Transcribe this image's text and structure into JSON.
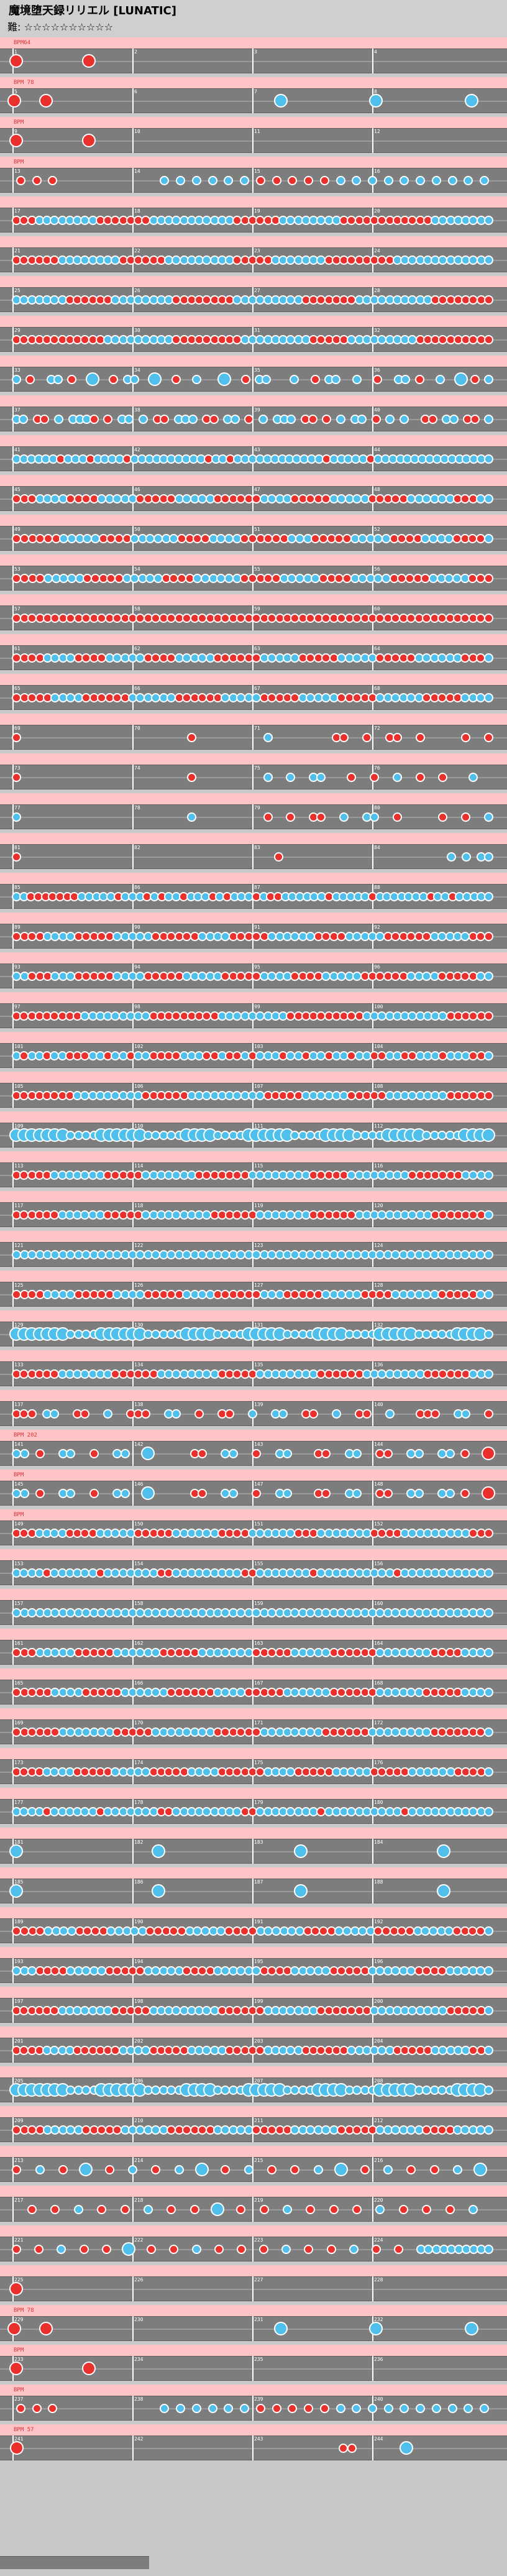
{
  "header": {
    "title": "魔境堕天録リリエル [LUNATIC]",
    "difficulty_label": "難: ☆☆☆☆☆☆☆☆☆☆"
  },
  "chart_data": {
    "type": "table",
    "course": "LUNATIC",
    "stars": 10,
    "measures_per_row": 4,
    "rows": [
      {
        "first": 1,
        "event": "BPM64",
        "notes": "X.........X......................................................."
      },
      {
        "first": 5,
        "event": "BPM 78",
        "notes": "X.........X.........................................................................B.............................B.............................B......"
      },
      {
        "first": 9,
        "event": "BPM",
        "notes": "X.........X......................................................."
      },
      {
        "first": 13,
        "event": "BPM",
        "notes": "ooo......kkkkkkoooookkkkkkkkkk"
      },
      {
        "first": 17,
        "notes": "oookkkkkkkkoooooookkkkkkkkkkkooooookkkkkkkkooooooooooookkkkkkkk"
      },
      {
        "first": 21,
        "notes": "ooooookkkkkkkkooooookkkkkkkkkoooookkkkkkkoooooooookkkkkkkkkkkkk"
      },
      {
        "first": 25,
        "notes": "kkkkkkkooooookkkkkkkkooooooookkkkkkkkkoooooookkkkkkkkkkoooooooo"
      },
      {
        "first": 29,
        "notes": "ooooooooooookkkkkkkkkoooooooookkkkkkkkkoooookkkkkkkkkoooooooooo"
      },
      {
        "first": 33,
        "notes": "k.o..kk.o..K..o.kk..K..o..k...K..o.kk...k..o.kk..k..o..kk.o..k..K.o.k"
      },
      {
        "first": 37,
        "notes": "kk.oo.k.kkko.o.kk.k.oo.kkk.oo.kk.o.k.kkk.oo.o.k.kk.o.k.k..oo.kk.oo.k"
      },
      {
        "first": 41,
        "notes": "kkkkkkokkkokkkkokkkkkkkkkkokkokkkkkkkkkkkkokkkkkokkkkkkkkkkkkkkkk"
      },
      {
        "first": 45,
        "notes": "oookkkkooookkkkkoooookkkkkooooookkkkoooookkkkkoooookkkkkkoookk"
      },
      {
        "first": 49,
        "notes": "ooooookkkkkooookkkkkkooookkkkooooookkkoooookkkkkooookkkkooook"
      },
      {
        "first": 53,
        "notes": "ooookkkkkoooookkkkkooookkkkkkoooookkkkkooookkkkkoooookkkkkooo"
      },
      {
        "first": 57,
        "notes": "oooooooooooooooooooooooooooooooooooooooooooooooooooooooooooooo"
      },
      {
        "first": 61,
        "notes": "ooookkkkooookkkkkooookkkkkooooookkkkkoooookkkkkoooookkkkkkoook"
      },
      {
        "first": 65,
        "notes": "oooookkkkooooookkkkkkooooookkkkkoooookkkkkoooookkkkkkoooookkkk"
      },
      {
        "first": 69,
        "notes": "o......................o.........k........oo..o..oo..o.....o..o"
      },
      {
        "first": 73,
        "notes": "o......................o.........k..k..kk...o..o..k..o..o...k.."
      },
      {
        "first": 77,
        "notes": "k......................k.........o..o..oo..k..kk..o.....o..o..k"
      },
      {
        "first": 81,
        "notes": "o..................................o......................k.k.kk"
      },
      {
        "first": 85,
        "notes": "kkoooooookkkkkokkkokokkokkkokokkkokookkkkkkokkkkkokkkkkkkokkokkkkk"
      },
      {
        "first": 89,
        "notes": "ooookkkkoooookkkkkooooookkkkoooookkkkkkooookkkkkooooookkkkkooo"
      },
      {
        "first": 93,
        "notes": "kkoookkkoooookkkkoooookkkkkoooookkkkooookkkkkooooookkkkoooookk"
      },
      {
        "first": 97,
        "notes": "oooooooookkkkkkkkkoooooooookkkkkkkkkooooooooookkkkkkkkkkkoooooo"
      },
      {
        "first": 101,
        "notes": "kokkokkoookkokkokkooookkkookookokkkokkokkokkokkookkookkkokkkook"
      },
      {
        "first": 105,
        "notes": "ooooooookkkkkkkkkooooookkkkkkkkkkoooookkkkkkoooookkkkkkkkoooooo"
      },
      {
        "first": 109,
        "notes": "KKKKKKKkkkkKKKKKKkkkkkKKKKkkkkKKKKKKkkkkKKKKkkkkKKKKKkkkkkKKKK"
      },
      {
        "first": 113,
        "notes": "oooookkkkkkkoooookkkkkkkoooooookkkkkkkkoooookkkkkkkkoooooookkkk"
      },
      {
        "first": 117,
        "notes": "ooooookkkkkkoooookkkkkkkkkooooookkkkkkkooooookkkkkkkkkkoooooook"
      },
      {
        "first": 121,
        "notes": "kkkkkkkkkkkkkkkkkkkkkkkkkkkkkkkkkkkkkkkkkkkkkkkkkkkkkkkkkkkkkk"
      },
      {
        "first": 125,
        "notes": "ooookkkkoooookkkkoooookkkkooooookkkoooookkkkkooookkkkkkoooookk"
      },
      {
        "first": 129,
        "notes": "KKKKKKKkkkkKKKKKKkkkkkKKKKkkkkKKKKKkkkkKKKKkkkkKKKKKkkkkkKKKKk"
      },
      {
        "first": 133,
        "notes": "ooooookkkkkkkooooookkkkkkkkoooookkkkkkkkooooookkkkkkkkooooookkk"
      },
      {
        "first": 137,
        "notes": "ooo.kk..oo..k..ooo..kk..o..oo..k..kk..oo..k..oo..k...ooo..kk..o"
      },
      {
        "first": 141,
        "event": "BPM 202",
        "notes": "kk.o..kk..o..kk..K.....oo..kk..o..kk...oo..kk..oo..kk..kk.o..O"
      },
      {
        "first": 145,
        "event": "BPM",
        "notes": "kk.o..kk..o..kk..K.....oo..kk..o..kk...oo..kk..oo..kk..kk.o..O"
      },
      {
        "first": 149,
        "event": "BPM",
        "notes": "oookkkkooookkkkkoooookkkkkkooookkkkkkoookkkkkkkooookkkkkkkkkooo"
      },
      {
        "first": 153,
        "notes": "kkkkokkkkkkokkkkkkkookkkkkkkkkookkkkkkkokkkkkkkkkkokkkkkkkkkkkk"
      },
      {
        "first": 157,
        "notes": "kkkkkkkkkkkkkkkkkkkkkkkkkkkkkkkkkkkkkkkkkkkkkkkkkkkkkkkkkkkkkk"
      },
      {
        "first": 161,
        "notes": "oookkkkkoooookkkkkkoooookkkkkkkoooookkkkkooooookkkkkkkooookkkk"
      },
      {
        "first": 165,
        "notes": "oooookkkkoooookkkkkkooooookkkkoooookkkkkkooooookkkkkkoooookkkk"
      },
      {
        "first": 169,
        "notes": "ooooookkkkkkkoooookkkkkkkkooooookkkkkkkkooooookkkkkkkkoooooook"
      },
      {
        "first": 173,
        "notes": "ooookkkkoooookkkkkoooookkkkooooookkkkoooookkkkkoooookkkkkkooook"
      },
      {
        "first": 177,
        "notes": "kkkkokkkkkkokkkkkkkookkkkkkkkkookkkkkkkkokkkkkkkkkkokkkkkkkkkkk"
      },
      {
        "first": 181,
        "notes": "K..................K..................K..................K......"
      },
      {
        "first": 185,
        "notes": "K..................K..................K..................K......"
      },
      {
        "first": 189,
        "notes": "ooookkkkooookkkkkoooookkkkkooookkkkkkooookkkkkoooookkkkkooook"
      },
      {
        "first": 193,
        "notes": "kkkooookkkkkoooookkkkkooookkkkkkooookkkkkoooookkkkkkooookkkkkk"
      },
      {
        "first": 197,
        "notes": "ooooookkkkkkkoooookkkkkkkkkooooookkkkkkkoooooookkkkkkkkkkoooook"
      },
      {
        "first": 201,
        "notes": "ooookkkkooooookkkkoooookkkkkoooookkkkkooooookkkkkkoooookkkkkook"
      },
      {
        "first": 205,
        "notes": "KKKKKKKkkkkKKKKKKkkkkkKKKKkkkkKKKKKkkkkKKKKkkkkKKKKKkkkkkKKKKk"
      },
      {
        "first": 209,
        "notes": "ooookkkkkoooookkkkkkooooookkkkkoooookkkkkkoooookkkkkkooookkkkk"
      },
      {
        "first": 213,
        "notes": "o..k..o..K..o..k..o..k..K..o..k..o..o..k..K..o..k..o..o..k..K."
      },
      {
        "first": 217,
        "notes": "..o..o..k..o..o..k..o..o..K..o..o..k..o..o..o..k..o..o..o..k.."
      },
      {
        "first": 221,
        "notes": "o..o..k..o..o..K..o..o..k..o..o..o..k..o..o..k..o..o..kkkkkkkkkk"
      },
      {
        "first": 225,
        "notes": "O.................................................................."
      },
      {
        "first": 229,
        "event": "BPM 78",
        "notes": "X.........X.........................................................................B.............................B.............................B......"
      },
      {
        "first": 233,
        "event": "BPM",
        "notes": "X.........X......................................................."
      },
      {
        "first": 237,
        "event": "BPM",
        "notes": "ooo......kkkkkkoooookkkkkkkkkk"
      },
      {
        "first": 241,
        "event": "BPM 57",
        "notes": "X...................................oo.....B........."
      }
    ],
    "legend": {
      "o": "don (red)",
      "k": "ka (blue)",
      "O": "big don",
      "K": "big ka"
    }
  },
  "colors": {
    "don": "#e9302c",
    "ka": "#4fc0ec",
    "band": "#ffc4c8",
    "lane": "#7d7d7d",
    "event": "#e03030"
  }
}
